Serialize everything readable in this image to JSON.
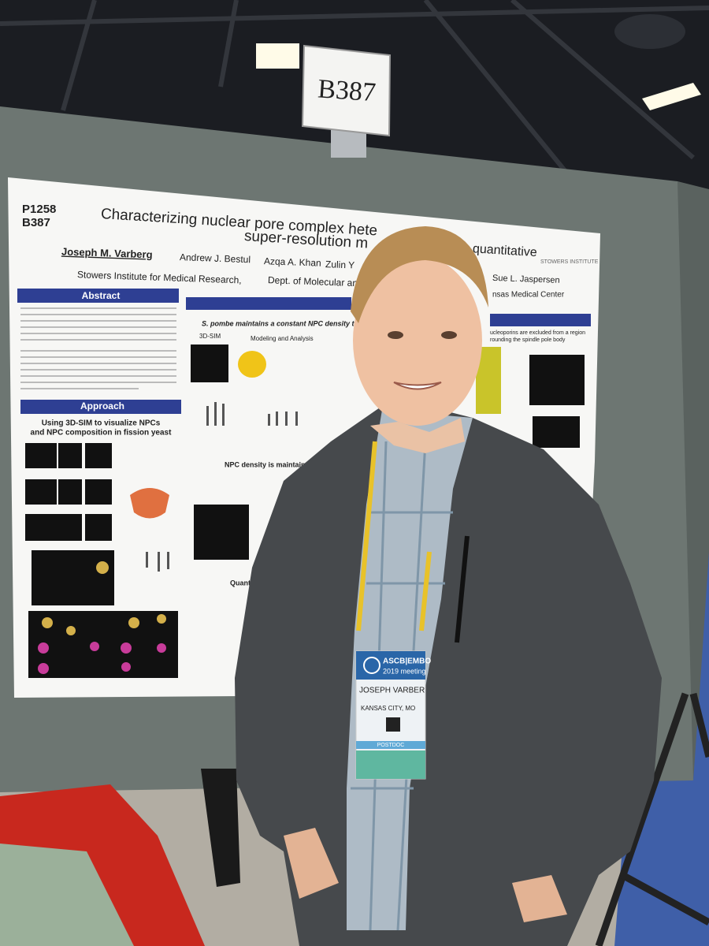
{
  "sign": "B387",
  "poster": {
    "id": "P1258",
    "booth": "B387",
    "title_line1": "Characterizing nuclear pore complex hete",
    "title_line2": "super-resolution m",
    "title_tail": "quantitative",
    "authors": [
      "Joseph M. Varberg",
      "Andrew J. Bestul",
      "Azqa A. Khan",
      "Zulin Y",
      "Sue L. Jaspersen"
    ],
    "affiliation_1": "Stowers Institute for Medical Research,",
    "affiliation_2": "Dept. of Molecular and Inte",
    "affiliation_3": "nsas Medical Center",
    "institute": "STOWERS INSTITUTE",
    "sections": {
      "abstract": "Abstract",
      "approach": "Approach",
      "approach_subtitle_1": "Using 3D-SIM to visualize NPCs",
      "approach_subtitle_2": "and NPC composition in fission yeast",
      "result_header": "S. pombe maintains a constant NPC density through mito",
      "panel_1": "3D-SIM",
      "panel_2": "Modeling and Analysis",
      "density_header": "NPC density is maintained d",
      "quantification": "Quantific",
      "right_header_1": "ucleoporins are excluded from a region",
      "right_header_2": "rounding the spindle pole body"
    }
  },
  "badge": {
    "meeting": "ASCB|EMBO",
    "year": "2019 meeting",
    "name": "JOSEPH VARBER",
    "city": "KANSAS CITY, MO",
    "role": "POSTDOC"
  }
}
